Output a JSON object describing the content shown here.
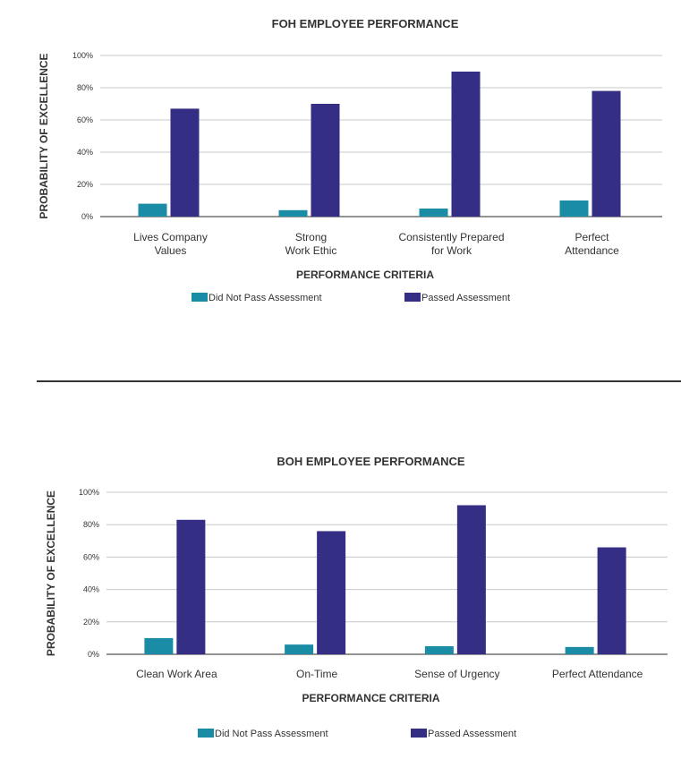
{
  "chart_data": [
    {
      "type": "bar",
      "title": "FOH EMPLOYEE PERFORMANCE",
      "xlabel": "PERFORMANCE CRITERIA",
      "ylabel": "PROBABILITY OF EXCELLENCE",
      "categories": [
        [
          "Lives Company",
          "Values"
        ],
        [
          "Strong",
          "Work Ethic"
        ],
        [
          "Consistently Prepared",
          "for Work"
        ],
        [
          "Perfect",
          "Attendance"
        ]
      ],
      "series": [
        {
          "name": "Did Not Pass Assessment",
          "values": [
            8,
            4,
            5,
            10
          ],
          "color": "#1a8ca6"
        },
        {
          "name": "Passed Assessment",
          "values": [
            67,
            70,
            90,
            78
          ],
          "color": "#352e85"
        }
      ],
      "ylim": [
        0,
        100
      ],
      "yticks": [
        "0%",
        "20%",
        "40%",
        "60%",
        "80%",
        "100%"
      ],
      "grid": true,
      "legend_position": "bottom"
    },
    {
      "type": "bar",
      "title": "BOH EMPLOYEE PERFORMANCE",
      "xlabel": "PERFORMANCE CRITERIA",
      "ylabel": "PROBABILITY OF EXCELLENCE",
      "categories": [
        [
          "Clean Work Area"
        ],
        [
          "On-Time"
        ],
        [
          "Sense of Urgency"
        ],
        [
          "Perfect Attendance"
        ]
      ],
      "series": [
        {
          "name": "Did Not Pass Assessment",
          "values": [
            10,
            6,
            5,
            4.5
          ],
          "color": "#1a8ca6"
        },
        {
          "name": "Passed Assessment",
          "values": [
            83,
            76,
            92,
            66
          ],
          "color": "#352e85"
        }
      ],
      "ylim": [
        0,
        100
      ],
      "yticks": [
        "0%",
        "20%",
        "40%",
        "60%",
        "80%",
        "100%"
      ],
      "grid": true,
      "legend_position": "bottom"
    }
  ]
}
